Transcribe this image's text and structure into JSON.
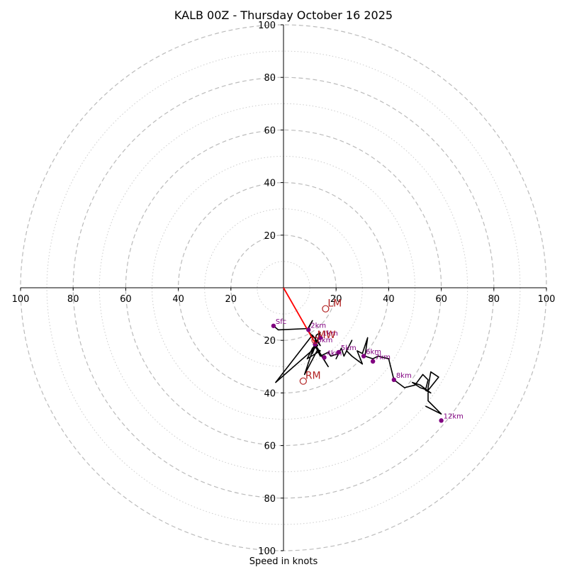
{
  "chart_data": {
    "type": "hodograph",
    "title": "KALB 00Z - Thursday October 16 2025",
    "xlabel": "Speed in knots",
    "range": [
      -100,
      100
    ],
    "ring_major": [
      20,
      40,
      60,
      80,
      100
    ],
    "ring_minor": [
      10,
      30,
      50,
      70,
      90
    ],
    "tick_labels_x": [
      "100",
      "80",
      "60",
      "40",
      "20",
      "20",
      "40",
      "60",
      "80",
      "100"
    ],
    "tick_labels_y_pos": [
      "20",
      "40",
      "60",
      "80",
      "100"
    ],
    "tick_labels_y_neg": [
      "20",
      "40",
      "60",
      "80",
      "100"
    ],
    "wind_trace_uv": [
      [
        -3.8,
        -14.5
      ],
      [
        -2,
        -16
      ],
      [
        9.5,
        -15.5
      ],
      [
        11,
        -12.5
      ],
      [
        9,
        -16
      ],
      [
        11.5,
        -19
      ],
      [
        11,
        -18
      ],
      [
        12.5,
        -20
      ],
      [
        11,
        -25
      ],
      [
        14,
        -17
      ],
      [
        12.5,
        -18
      ],
      [
        12,
        -20
      ],
      [
        13,
        -22
      ],
      [
        -3,
        -36
      ],
      [
        11,
        -18
      ],
      [
        14,
        -22
      ],
      [
        13,
        -20
      ],
      [
        12,
        -21
      ],
      [
        8,
        -33
      ],
      [
        13,
        -23.5
      ],
      [
        14,
        -24
      ],
      [
        9,
        -27
      ],
      [
        10,
        -25
      ],
      [
        11,
        -23
      ],
      [
        12,
        -22
      ],
      [
        13,
        -23
      ],
      [
        14,
        -25
      ],
      [
        17,
        -30
      ],
      [
        12,
        -22
      ],
      [
        14,
        -26
      ],
      [
        16,
        -25
      ],
      [
        17,
        -24.5
      ],
      [
        18,
        -26
      ],
      [
        21,
        -25
      ],
      [
        20,
        -27
      ],
      [
        22,
        -23
      ],
      [
        23,
        -26
      ],
      [
        26,
        -20
      ],
      [
        24,
        -24
      ],
      [
        26,
        -26
      ],
      [
        30,
        -29
      ],
      [
        28,
        -24
      ],
      [
        30,
        -25
      ],
      [
        32,
        -19
      ],
      [
        31,
        -26
      ],
      [
        34,
        -27
      ],
      [
        36,
        -26
      ],
      [
        40,
        -27
      ],
      [
        41,
        -31
      ],
      [
        42,
        -35
      ],
      [
        46,
        -38
      ],
      [
        50,
        -37
      ],
      [
        53,
        -33
      ],
      [
        55,
        -35
      ],
      [
        54,
        -39
      ],
      [
        56,
        -40
      ],
      [
        52,
        -37
      ],
      [
        49,
        -36
      ],
      [
        52,
        -38
      ],
      [
        55,
        -39
      ],
      [
        59,
        -34
      ],
      [
        56,
        -32
      ],
      [
        55,
        -38
      ],
      [
        55,
        -43
      ],
      [
        60,
        -48
      ],
      [
        54,
        -45
      ]
    ],
    "height_labels": [
      {
        "label": "Sfc",
        "u": -3.8,
        "v": -14.5
      },
      {
        "label": "1km",
        "u": 14,
        "v": -19
      },
      {
        "label": "2km",
        "u": 9.5,
        "v": -16
      },
      {
        "label": "3km",
        "u": 12,
        "v": -21.5
      },
      {
        "label": "4km",
        "u": 15.5,
        "v": -26.5
      },
      {
        "label": "5km",
        "u": 21,
        "v": -24.5
      },
      {
        "label": "6km",
        "u": 30.5,
        "v": -26
      },
      {
        "label": "7km",
        "u": 34,
        "v": -28
      },
      {
        "label": "8km",
        "u": 42,
        "v": -35
      },
      {
        "label": "12km",
        "u": 60,
        "v": -50.5
      }
    ],
    "motion_markers": [
      {
        "label": "LM",
        "u": 16,
        "v": -8
      },
      {
        "label": "MW",
        "u": 12,
        "v": -20
      },
      {
        "label": "RM",
        "u": 7.5,
        "v": -35.5
      }
    ],
    "shear_vector": {
      "from": [
        0,
        0
      ],
      "to": [
        12,
        -21
      ]
    },
    "colors": {
      "trace": "#000000",
      "height_marker": "#800080",
      "motion": "#b22222",
      "shear_vector": "#ff0000",
      "grid": "#bbbbbb"
    }
  }
}
